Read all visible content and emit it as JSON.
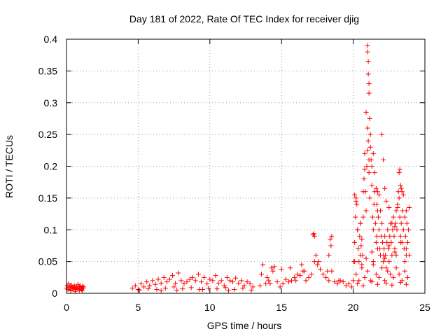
{
  "chart_data": {
    "type": "scatter",
    "title": "Day 181 of 2022, Rate Of TEC Index for receiver djig",
    "xlabel": "GPS time / hours",
    "ylabel": "ROTI / TECUs",
    "xlim": [
      0,
      25
    ],
    "ylim": [
      0,
      0.4
    ],
    "xticks": [
      0,
      5,
      10,
      15,
      20,
      25
    ],
    "xtick_labels": [
      "0",
      "5",
      "10",
      "15",
      "20",
      "25"
    ],
    "yticks": [
      0,
      0.05,
      0.1,
      0.15,
      0.2,
      0.25,
      0.3,
      0.35,
      0.4
    ],
    "ytick_labels": [
      "0",
      "0.05",
      "0.1",
      "0.15",
      "0.2",
      "0.25",
      "0.3",
      "0.35",
      "0.4"
    ],
    "grid": true,
    "marker": "+",
    "color": "#ff0000",
    "series": [
      {
        "name": "ROTI",
        "x": [
          0.0,
          0.05,
          0.1,
          0.15,
          0.2,
          0.25,
          0.3,
          0.35,
          0.4,
          0.45,
          0.5,
          0.55,
          0.6,
          0.65,
          0.7,
          0.75,
          0.8,
          0.85,
          0.9,
          0.95,
          1.0,
          1.05,
          1.1,
          1.15,
          1.2,
          0.3,
          0.6,
          0.9,
          1.1,
          4.6,
          4.8,
          5.0,
          5.2,
          5.4,
          5.6,
          5.8,
          6.0,
          6.2,
          6.4,
          6.6,
          6.8,
          7.0,
          7.2,
          7.4,
          7.6,
          7.8,
          8.0,
          8.2,
          8.4,
          8.6,
          8.8,
          9.0,
          9.2,
          9.4,
          9.6,
          9.8,
          10.0,
          10.2,
          10.4,
          10.6,
          10.8,
          11.0,
          11.2,
          11.4,
          11.6,
          11.8,
          12.0,
          12.2,
          12.4,
          12.6,
          12.8,
          13.0,
          5.1,
          5.7,
          6.3,
          6.9,
          7.5,
          8.1,
          8.7,
          9.3,
          9.9,
          10.5,
          11.1,
          11.7,
          12.3,
          12.9,
          6.6,
          7.7,
          9.5,
          11.3,
          13.5,
          13.7,
          13.9,
          14.1,
          14.3,
          14.5,
          14.7,
          14.9,
          15.1,
          15.3,
          15.5,
          15.7,
          15.9,
          16.1,
          16.3,
          16.5,
          16.7,
          16.9,
          17.1,
          17.3,
          17.5,
          17.7,
          17.9,
          18.1,
          18.3,
          18.5,
          18.7,
          18.9,
          19.1,
          19.3,
          19.5,
          19.7,
          19.9,
          13.6,
          14.0,
          14.2,
          14.4,
          15.0,
          15.6,
          16.0,
          16.6,
          16.4,
          17.2,
          17.25,
          17.3,
          17.4,
          17.6,
          18.2,
          18.3,
          18.4,
          18.5,
          18.45,
          19.0,
          20.0,
          20.05,
          20.1,
          20.15,
          20.2,
          20.25,
          20.3,
          20.35,
          20.4,
          20.45,
          20.5,
          20.55,
          20.6,
          20.65,
          20.7,
          20.75,
          20.8,
          20.85,
          20.9,
          20.95,
          21.0,
          21.05,
          21.1,
          21.15,
          21.2,
          21.25,
          21.3,
          21.35,
          21.4,
          21.45,
          21.5,
          21.55,
          21.6,
          21.65,
          21.7,
          21.75,
          21.8,
          21.85,
          21.9,
          21.95,
          22.0,
          22.05,
          22.1,
          22.15,
          22.2,
          22.25,
          22.3,
          22.35,
          22.4,
          22.45,
          22.5,
          22.55,
          22.6,
          22.65,
          22.7,
          22.75,
          22.8,
          22.85,
          22.9,
          22.95,
          23.0,
          23.05,
          23.1,
          23.15,
          23.2,
          23.25,
          23.3,
          23.35,
          23.4,
          23.45,
          23.5,
          23.55,
          23.6,
          23.65,
          23.7,
          23.75,
          23.8,
          23.85,
          23.9,
          20.1,
          20.2,
          20.3,
          20.5,
          20.7,
          20.8,
          20.9,
          21.0,
          21.0,
          21.05,
          21.05,
          21.1,
          21.1,
          21.15,
          21.2,
          21.0,
          21.1,
          21.3,
          21.4,
          21.5,
          21.6,
          21.65,
          21.7,
          21.8,
          21.9,
          22.0,
          22.1,
          22.2,
          22.3,
          22.5,
          22.7,
          22.9,
          23.1,
          23.2,
          23.25,
          23.3,
          23.35,
          23.4,
          23.5,
          23.7,
          23.9,
          20.2,
          20.4,
          20.6,
          20.8,
          21.0,
          21.2,
          21.4,
          21.6,
          21.8,
          22.0,
          22.2,
          22.4,
          22.6,
          22.8,
          23.0,
          23.2,
          23.4,
          23.6,
          23.8,
          20.3,
          20.7,
          21.3,
          21.7,
          22.3,
          22.7,
          23.3,
          23.7,
          20.1,
          20.5,
          20.9,
          21.3,
          21.7,
          22.1,
          22.5,
          22.9,
          23.3,
          23.7,
          20.6,
          21.4,
          22.2,
          23.0,
          23.6
        ],
        "y": [
          0.008,
          0.012,
          0.006,
          0.015,
          0.009,
          0.011,
          0.005,
          0.013,
          0.008,
          0.01,
          0.007,
          0.012,
          0.009,
          0.006,
          0.011,
          0.008,
          0.014,
          0.007,
          0.01,
          0.012,
          0.009,
          0.006,
          0.011,
          0.008,
          0.01,
          0.004,
          0.003,
          0.005,
          0.004,
          0.008,
          0.012,
          0.006,
          0.015,
          0.01,
          0.018,
          0.012,
          0.02,
          0.014,
          0.022,
          0.016,
          0.025,
          0.018,
          0.022,
          0.028,
          0.016,
          0.032,
          0.02,
          0.015,
          0.018,
          0.022,
          0.025,
          0.02,
          0.03,
          0.018,
          0.025,
          0.015,
          0.022,
          0.02,
          0.028,
          0.016,
          0.02,
          0.012,
          0.025,
          0.02,
          0.018,
          0.024,
          0.016,
          0.02,
          0.012,
          0.018,
          0.015,
          0.01,
          0.005,
          0.007,
          0.006,
          0.008,
          0.01,
          0.007,
          0.009,
          0.006,
          0.008,
          0.007,
          0.009,
          0.006,
          0.008,
          0.005,
          0.004,
          0.005,
          0.006,
          0.004,
          0.012,
          0.045,
          0.015,
          0.02,
          0.04,
          0.042,
          0.018,
          0.01,
          0.015,
          0.022,
          0.018,
          0.02,
          0.025,
          0.03,
          0.028,
          0.035,
          0.02,
          0.025,
          0.03,
          0.05,
          0.045,
          0.038,
          0.03,
          0.025,
          0.02,
          0.035,
          0.018,
          0.015,
          0.02,
          0.018,
          0.012,
          0.015,
          0.01,
          0.03,
          0.025,
          0.015,
          0.035,
          0.038,
          0.04,
          0.02,
          0.035,
          0.045,
          0.092,
          0.094,
          0.09,
          0.06,
          0.05,
          0.035,
          0.06,
          0.085,
          0.09,
          0.075,
          0.02,
          0.02,
          0.05,
          0.08,
          0.12,
          0.15,
          0.14,
          0.1,
          0.07,
          0.05,
          0.09,
          0.11,
          0.075,
          0.085,
          0.06,
          0.12,
          0.18,
          0.22,
          0.16,
          0.13,
          0.2,
          0.26,
          0.24,
          0.19,
          0.15,
          0.23,
          0.21,
          0.17,
          0.12,
          0.1,
          0.14,
          0.16,
          0.11,
          0.08,
          0.09,
          0.13,
          0.12,
          0.1,
          0.07,
          0.06,
          0.09,
          0.11,
          0.08,
          0.05,
          0.07,
          0.09,
          0.06,
          0.04,
          0.08,
          0.1,
          0.07,
          0.05,
          0.09,
          0.11,
          0.08,
          0.06,
          0.1,
          0.12,
          0.09,
          0.07,
          0.11,
          0.13,
          0.1,
          0.14,
          0.16,
          0.15,
          0.12,
          0.09,
          0.11,
          0.08,
          0.13,
          0.1,
          0.07,
          0.12,
          0.09,
          0.06,
          0.11,
          0.08,
          0.1,
          0.06,
          0.155,
          0.145,
          0.1,
          0.11,
          0.16,
          0.195,
          0.285,
          0.39,
          0.38,
          0.365,
          0.345,
          0.33,
          0.315,
          0.275,
          0.25,
          0.225,
          0.21,
          0.2,
          0.22,
          0.19,
          0.165,
          0.14,
          0.16,
          0.155,
          0.13,
          0.25,
          0.21,
          0.165,
          0.145,
          0.135,
          0.11,
          0.105,
          0.135,
          0.19,
          0.195,
          0.17,
          0.165,
          0.16,
          0.155,
          0.13,
          0.135,
          0.03,
          0.02,
          0.04,
          0.025,
          0.035,
          0.02,
          0.045,
          0.03,
          0.025,
          0.04,
          0.02,
          0.035,
          0.03,
          0.025,
          0.04,
          0.03,
          0.02,
          0.035,
          0.025,
          0.015,
          0.012,
          0.018,
          0.014,
          0.016,
          0.013,
          0.017,
          0.014,
          0.05,
          0.06,
          0.055,
          0.065,
          0.07,
          0.06,
          0.075,
          0.065,
          0.08,
          0.07,
          0.045,
          0.05,
          0.055,
          0.06,
          0.05
        ]
      }
    ]
  }
}
